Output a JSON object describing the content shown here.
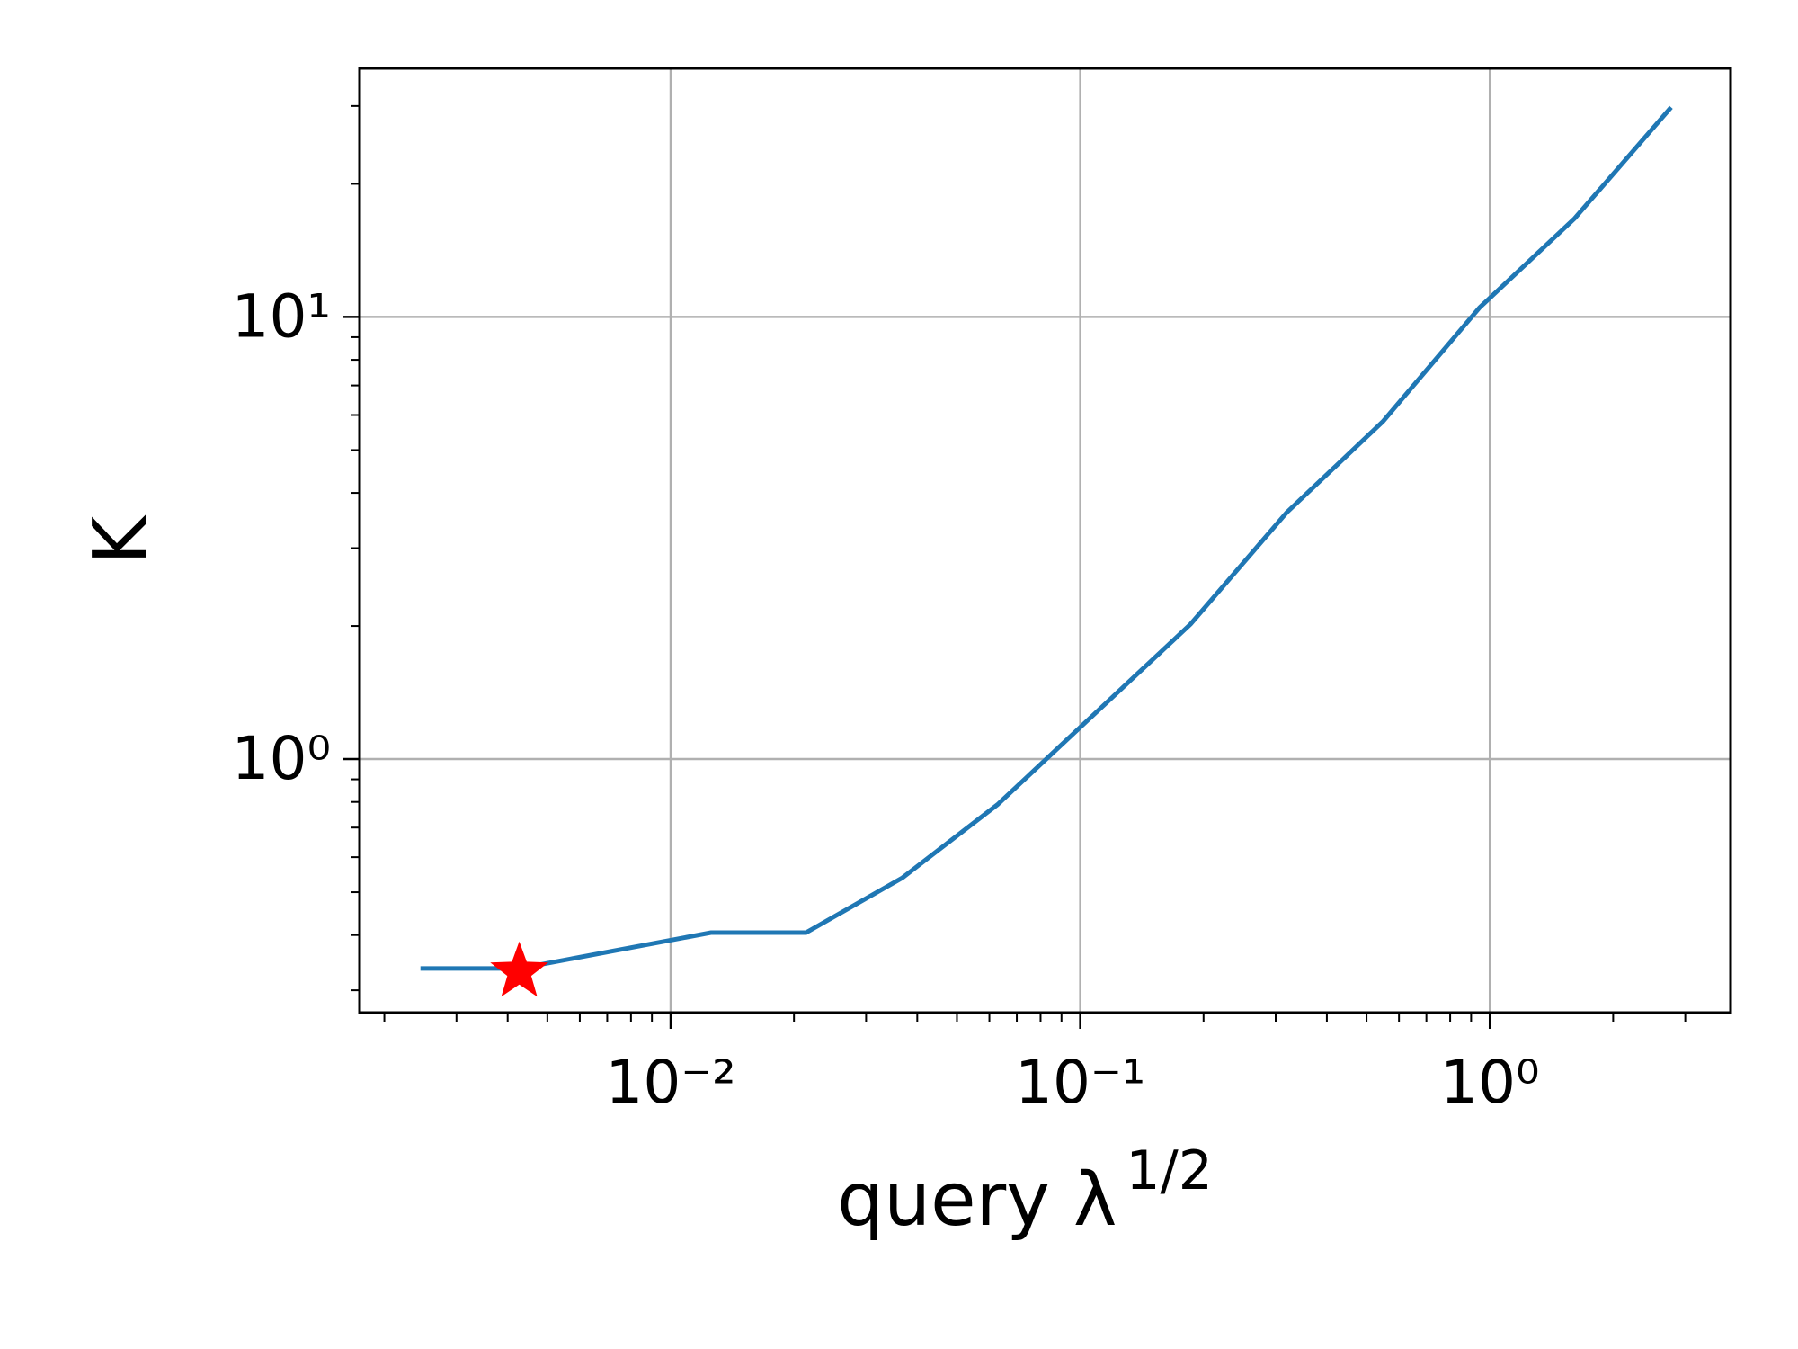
{
  "chart_data": {
    "type": "line",
    "xlabel": "query λ",
    "xlabel_superscript": "1/2",
    "ylabel": "K",
    "x": [
      0.00245,
      0.00427,
      0.01254,
      0.0214,
      0.0368,
      0.0628,
      0.186,
      0.319,
      0.548,
      0.944,
      1.61,
      2.77
    ],
    "series": [
      {
        "color": "#1f77b4",
        "values": [
          0.336,
          0.336,
          0.405,
          0.405,
          0.539,
          0.789,
          2.02,
          3.61,
          5.8,
          10.5,
          16.7,
          29.8
        ]
      }
    ],
    "marker": {
      "x": 0.00427,
      "y": 0.33,
      "color": "#ff0000",
      "shape": "star"
    },
    "xscale": "log",
    "yscale": "log",
    "xlim": [
      0.00174,
      3.87
    ],
    "ylim": [
      0.267,
      36.5
    ],
    "xticks": [
      {
        "value": 0.01,
        "label": "10⁻²"
      },
      {
        "value": 0.1,
        "label": "10⁻¹"
      },
      {
        "value": 1,
        "label": "10⁰"
      }
    ],
    "yticks": [
      {
        "value": 1,
        "label": "10⁰"
      },
      {
        "value": 10,
        "label": "10¹"
      }
    ],
    "xminorticks": [
      0.002,
      0.003,
      0.004,
      0.005,
      0.006,
      0.007,
      0.008,
      0.009,
      0.02,
      0.03,
      0.04,
      0.05,
      0.06,
      0.07,
      0.08,
      0.09,
      0.2,
      0.3,
      0.4,
      0.5,
      0.6,
      0.7,
      0.8,
      0.9,
      2,
      3
    ],
    "yminorticks": [
      0.3,
      0.4,
      0.5,
      0.6,
      0.7,
      0.8,
      0.9,
      2,
      3,
      4,
      5,
      6,
      7,
      8,
      9,
      20,
      30
    ],
    "grid": true
  }
}
